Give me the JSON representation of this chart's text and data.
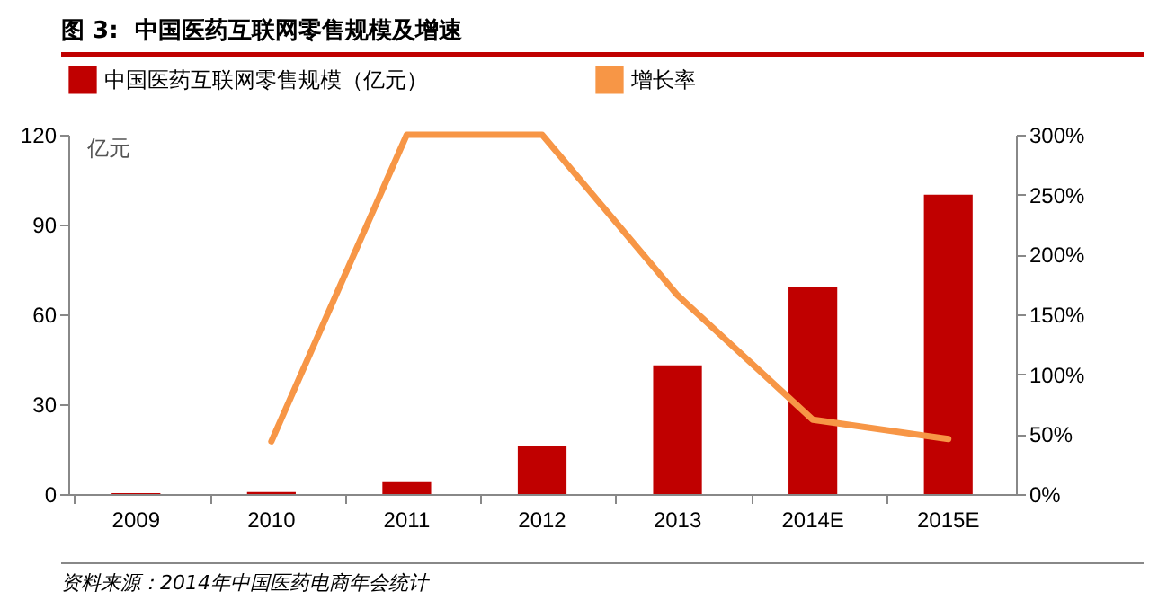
{
  "chart_data": {
    "type": "bar",
    "title": "图 3:  中国医药互联网零售规模及增速",
    "ylabel": "亿元",
    "categories": [
      "2009",
      "2010",
      "2011",
      "2012",
      "2013",
      "2014E",
      "2015E"
    ],
    "series": [
      {
        "name": "中国医药互联网零售规模（亿元）",
        "color": "#c00000",
        "values": [
          0.3,
          0.7,
          4,
          16,
          43,
          69,
          100
        ]
      },
      {
        "name": "增长率",
        "type": "line",
        "axis": "y2",
        "color": "#f79646",
        "values": [
          null,
          44,
          300,
          300,
          166,
          62,
          46
        ]
      }
    ],
    "ylim": [
      0,
      120
    ],
    "yticks": [
      0,
      30,
      60,
      90,
      120
    ],
    "y2lim": [
      0,
      300
    ],
    "y2ticks": [
      {
        "value": 0,
        "label": "0%"
      },
      {
        "value": 50,
        "label": "50%"
      },
      {
        "value": 100,
        "label": "100%"
      },
      {
        "value": 150,
        "label": "150%"
      },
      {
        "value": 200,
        "label": "200%"
      },
      {
        "value": 250,
        "label": "250%"
      },
      {
        "value": 300,
        "label": "300%"
      }
    ],
    "legend": "top",
    "grid": false,
    "annotations": [
      "资料来源：2014年中国医药电商年会统计"
    ]
  }
}
